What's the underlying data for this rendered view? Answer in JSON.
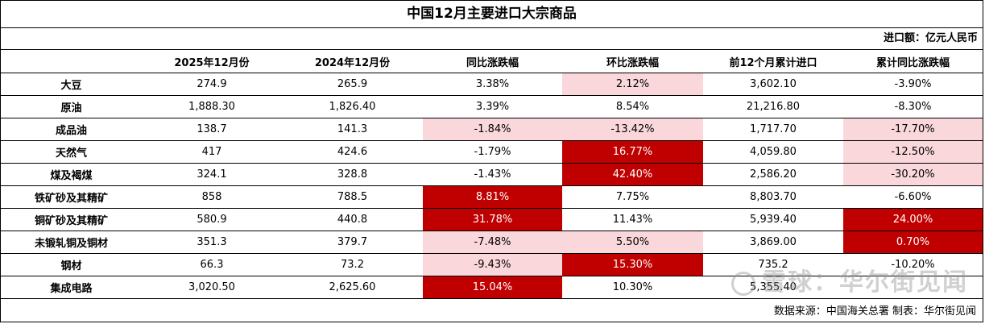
{
  "title": "中国12月主要进口大宗商品",
  "unit": "进口额：亿元人民币",
  "headers": [
    "",
    "2025年12月份",
    "2024年12月份",
    "同比涨跌幅",
    "环比涨跌幅",
    "前12个月累计进口",
    "累计同比涨跌幅"
  ],
  "rows": [
    {
      "name": "大豆",
      "v2025": "274.9",
      "v2024": "265.9",
      "yoy": "3.38%",
      "mom": "2.12%",
      "cum": "3,602.10",
      "cumyoy": "-3.90%"
    },
    {
      "name": "原油",
      "v2025": "1,888.30",
      "v2024": "1,826.40",
      "yoy": "3.39%",
      "mom": "8.54%",
      "cum": "21,216.80",
      "cumyoy": "-8.30%"
    },
    {
      "name": "成品油",
      "v2025": "138.7",
      "v2024": "141.3",
      "yoy": "-1.84%",
      "mom": "-13.42%",
      "cum": "1,717.70",
      "cumyoy": "-17.70%"
    },
    {
      "name": "天然气",
      "v2025": "417",
      "v2024": "424.6",
      "yoy": "-1.79%",
      "mom": "16.77%",
      "cum": "4,059.80",
      "cumyoy": "-12.50%"
    },
    {
      "name": "煤及褐煤",
      "v2025": "324.1",
      "v2024": "328.8",
      "yoy": "-1.43%",
      "mom": "42.40%",
      "cum": "2,586.20",
      "cumyoy": "-30.20%"
    },
    {
      "name": "铁矿砂及其精矿",
      "v2025": "858",
      "v2024": "788.5",
      "yoy": "8.81%",
      "mom": "7.75%",
      "cum": "8,803.70",
      "cumyoy": "-6.60%"
    },
    {
      "name": "铜矿砂及其精矿",
      "v2025": "580.9",
      "v2024": "440.8",
      "yoy": "31.78%",
      "mom": "11.43%",
      "cum": "5,939.40",
      "cumyoy": "24.00%"
    },
    {
      "name": "未锻轧铜及铜材",
      "v2025": "351.3",
      "v2024": "379.7",
      "yoy": "-7.48%",
      "mom": "5.50%",
      "cum": "3,869.00",
      "cumyoy": "0.70%"
    },
    {
      "name": "钢材",
      "v2025": "66.3",
      "v2024": "73.2",
      "yoy": "-9.43%",
      "mom": "15.30%",
      "cum": "735.2",
      "cumyoy": "-10.20%"
    },
    {
      "name": "集成电路",
      "v2025": "3,020.50",
      "v2024": "2,625.60",
      "yoy": "15.04%",
      "mom": "10.30%",
      "cum": "5,355.40",
      "cumyoy": ""
    }
  ],
  "cell_colors": {
    "pink": "#fad7db",
    "red": "#c00000"
  },
  "highlights": [
    {
      "row": 0,
      "col": "mom",
      "color": "pink"
    },
    {
      "row": 2,
      "col": "yoy",
      "color": "pink"
    },
    {
      "row": 2,
      "col": "mom",
      "color": "pink"
    },
    {
      "row": 2,
      "col": "cumyoy",
      "color": "pink"
    },
    {
      "row": 3,
      "col": "mom",
      "color": "red"
    },
    {
      "row": 3,
      "col": "cumyoy",
      "color": "pink"
    },
    {
      "row": 4,
      "col": "mom",
      "color": "red"
    },
    {
      "row": 4,
      "col": "cumyoy",
      "color": "pink"
    },
    {
      "row": 5,
      "col": "yoy",
      "color": "red"
    },
    {
      "row": 6,
      "col": "yoy",
      "color": "red"
    },
    {
      "row": 6,
      "col": "cumyoy",
      "color": "red"
    },
    {
      "row": 7,
      "col": "yoy",
      "color": "pink"
    },
    {
      "row": 7,
      "col": "mom",
      "color": "pink"
    },
    {
      "row": 7,
      "col": "cumyoy",
      "color": "red"
    },
    {
      "row": 8,
      "col": "yoy",
      "color": "pink"
    },
    {
      "row": 8,
      "col": "mom",
      "color": "red"
    },
    {
      "row": 9,
      "col": "yoy",
      "color": "red"
    }
  ],
  "footer": "数据来源：中国海关总署 制表：华尔街见闻",
  "watermark": "雪球：华尔街见闻"
}
